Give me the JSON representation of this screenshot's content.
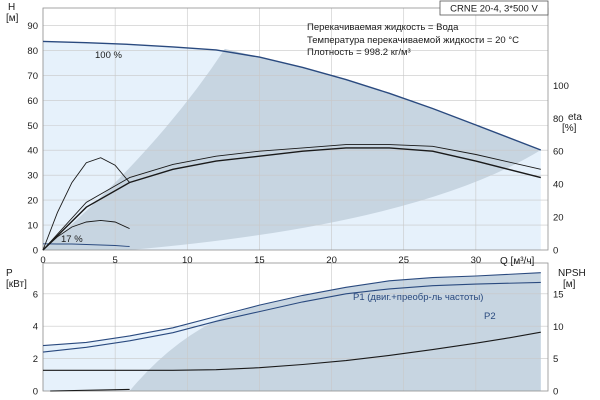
{
  "chart_data": [
    {
      "type": "line",
      "panel": "head-efficiency",
      "title": "CRNE 20-4, 3*500 V",
      "info_lines": [
        "Перекачиваемая жидкость = Вода",
        "Температура перекачиваемой жидкости = 20 °C",
        "Плотность = 998.2 кг/м³"
      ],
      "xlabel": "Q [м³/ч]",
      "xlim": [
        0,
        35
      ],
      "x_ticks": [
        "0",
        "5",
        "10",
        "15",
        "20",
        "25",
        "30"
      ],
      "y_left_label_top": "H",
      "y_left_label_unit": "[м]",
      "ylim_left": [
        0,
        97
      ],
      "y_left_ticks": [
        "0",
        "10",
        "20",
        "30",
        "40",
        "50",
        "60",
        "70",
        "80",
        "90"
      ],
      "y_right_label_top": "eta",
      "y_right_label_unit": "[%]",
      "ylim_right": [
        0,
        147
      ],
      "y_right_ticks": [
        "0",
        "20",
        "40",
        "60",
        "80",
        "100"
      ],
      "annotations": [
        "100 %",
        "17 %"
      ],
      "series": [
        {
          "axis": "left",
          "role": "head-100",
          "color": "#2a4a7f",
          "x": [
            0,
            3,
            6,
            9,
            12,
            15,
            18,
            21,
            24,
            27,
            30,
            34.5
          ],
          "y": [
            83.6,
            83.1,
            82.4,
            81.4,
            80.2,
            77.3,
            73.2,
            68.3,
            62.8,
            56.7,
            50.1,
            40.1
          ]
        },
        {
          "axis": "left",
          "role": "head-17",
          "color": "#2a4a7f",
          "x": [
            0,
            1,
            2,
            3,
            4,
            5,
            6
          ],
          "y": [
            2.5,
            2.4,
            2.4,
            2.2,
            2.0,
            1.8,
            1.4
          ]
        },
        {
          "axis": "right",
          "role": "efficiency",
          "color": "#1a1a1a",
          "x": [
            0,
            3,
            6,
            9,
            12,
            15,
            18,
            21,
            24,
            27,
            30,
            34.5
          ],
          "y": [
            0,
            26,
            41,
            49,
            54,
            57,
            60,
            62,
            62,
            60,
            54,
            44
          ]
        },
        {
          "axis": "right",
          "role": "efficiency-2",
          "color": "#1a1a1a",
          "x": [
            0,
            3,
            6,
            9,
            12,
            15,
            18,
            21,
            24,
            27,
            30,
            34.5
          ],
          "y": [
            0,
            29,
            44,
            52,
            57,
            60,
            62,
            64,
            64,
            63,
            58,
            49
          ]
        },
        {
          "axis": "right",
          "role": "efficiency-17",
          "color": "#1a1a1a",
          "x": [
            0,
            1,
            2,
            3,
            4,
            5,
            6
          ],
          "y": [
            0,
            8,
            14,
            17,
            18,
            17,
            13
          ]
        },
        {
          "axis": "left",
          "role": "aux-curve",
          "color": "#1a1a1a",
          "x": [
            0,
            1,
            2,
            3,
            4,
            5,
            6
          ],
          "y": [
            0,
            15,
            27,
            35,
            37,
            34,
            27
          ]
        }
      ]
    },
    {
      "type": "line",
      "panel": "power-npsh",
      "xlim": [
        0,
        35
      ],
      "y_left_label_top": "P",
      "y_left_label_unit": "[кВт]",
      "ylim_left": [
        0,
        7.9
      ],
      "y_left_ticks": [
        "0",
        "2",
        "4",
        "6"
      ],
      "y_right_label_top": "NPSH",
      "y_right_label_unit": "[м]",
      "ylim_right": [
        0,
        19.8
      ],
      "y_right_ticks": [
        "0",
        "5",
        "10",
        "15"
      ],
      "series": [
        {
          "name": "P1 (двиг.+преобр-ль частоты)",
          "axis": "left",
          "color": "#2a4a7f",
          "x": [
            0,
            3,
            6,
            9,
            12,
            15,
            18,
            21,
            24,
            27,
            30,
            34.5
          ],
          "y": [
            2.8,
            3.0,
            3.4,
            3.9,
            4.6,
            5.3,
            5.9,
            6.4,
            6.8,
            7.0,
            7.1,
            7.3
          ]
        },
        {
          "name": "P2",
          "axis": "left",
          "color": "#2a4a7f",
          "x": [
            0,
            3,
            6,
            9,
            12,
            15,
            18,
            21,
            24,
            27,
            30,
            34.5
          ],
          "y": [
            2.4,
            2.7,
            3.1,
            3.6,
            4.3,
            4.9,
            5.5,
            6.0,
            6.3,
            6.5,
            6.6,
            6.7
          ]
        },
        {
          "axis": "right",
          "role": "npsh",
          "color": "#1a1a1a",
          "x": [
            0,
            6,
            9,
            12,
            15,
            18,
            21,
            24,
            27,
            30,
            32,
            34.5
          ],
          "y": [
            3.2,
            3.2,
            3.2,
            3.3,
            3.6,
            4.1,
            4.7,
            5.5,
            6.4,
            7.4,
            8.1,
            9.1
          ]
        },
        {
          "axis": "left",
          "role": "p1-17",
          "color": "#1a1a1a",
          "x": [
            0.5,
            6
          ],
          "y": [
            0,
            0.1
          ]
        }
      ]
    }
  ]
}
